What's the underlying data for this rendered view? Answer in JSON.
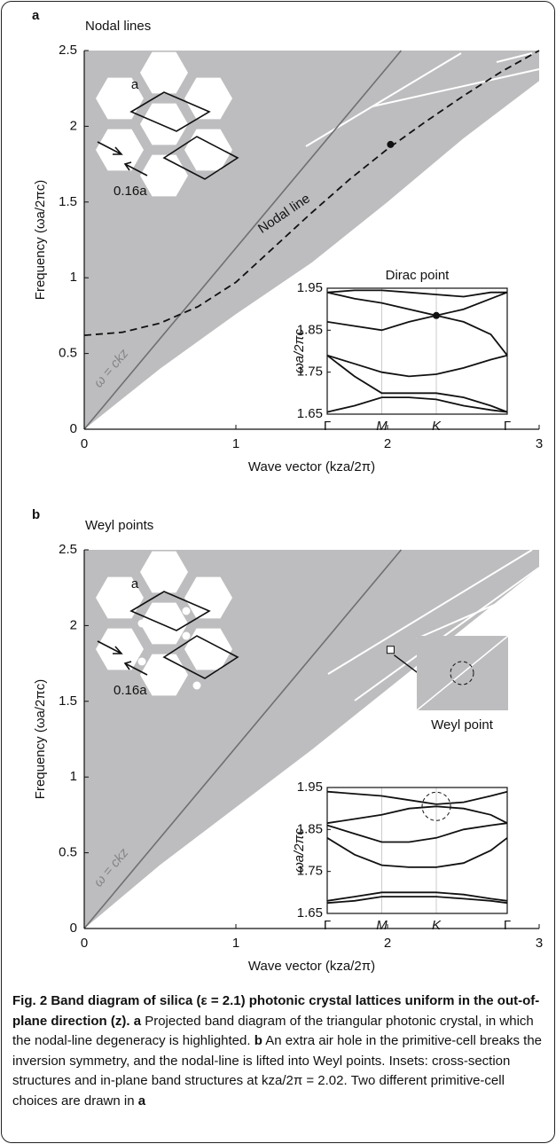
{
  "chart_data": [
    {
      "type": "area",
      "panel": "a",
      "title": "Nodal lines",
      "xlabel": "Wave vector (kza/2π)",
      "ylabel": "Frequency (ωa/2πc)",
      "xlim": [
        0,
        3
      ],
      "ylim": [
        0,
        2.5
      ],
      "xticks": [
        0,
        1,
        2,
        3
      ],
      "yticks": [
        0,
        0.5,
        1,
        1.5,
        2,
        2.5
      ],
      "projected_bands": {
        "color": "#bdbdbf",
        "x": [
          0,
          0.5,
          1,
          1.5,
          2,
          2.5,
          3
        ],
        "y": [
          0,
          0.4,
          0.76,
          1.1,
          1.5,
          1.92,
          2.3
        ]
      },
      "light_line": {
        "label": "ω = ckz",
        "color": "#6f6f72",
        "x": [
          0,
          2.09
        ],
        "y": [
          0,
          2.5
        ]
      },
      "nodal_line": {
        "label": "Nodal line",
        "x": [
          0,
          0.25,
          0.5,
          0.75,
          1,
          1.25,
          1.5,
          1.75,
          2,
          2.25,
          2.5,
          2.75,
          3
        ],
        "y": [
          0.62,
          0.64,
          0.7,
          0.81,
          0.97,
          1.2,
          1.43,
          1.65,
          1.85,
          2.03,
          2.2,
          2.36,
          2.5
        ]
      },
      "point": {
        "x": 2.02,
        "y": 1.88
      },
      "lattice_labels": [
        "a",
        "0.16a"
      ],
      "inset": {
        "title": "Dirac point",
        "ylabel": "ωa/2πc",
        "xlim": [
          0,
          3.3
        ],
        "ylim": [
          1.65,
          1.95
        ],
        "xticks": [
          {
            "value": 0,
            "label": "Γ"
          },
          {
            "value": 1,
            "label": "M"
          },
          {
            "value": 2,
            "label": "K"
          },
          {
            "value": 3.3,
            "label": "Γ"
          }
        ],
        "yticks": [
          1.65,
          1.75,
          1.85,
          1.95
        ],
        "x": [
          0,
          0.5,
          1,
          1.5,
          2,
          2.5,
          3,
          3.3
        ],
        "bands": [
          [
            1.94,
            1.945,
            1.945,
            1.94,
            1.935,
            1.93,
            1.94,
            1.94
          ],
          [
            1.94,
            1.925,
            1.915,
            1.9,
            1.885,
            1.9,
            1.925,
            1.94
          ],
          [
            1.87,
            1.86,
            1.85,
            1.87,
            1.885,
            1.87,
            1.84,
            1.79
          ],
          [
            1.79,
            1.77,
            1.75,
            1.74,
            1.745,
            1.76,
            1.78,
            1.79
          ],
          [
            1.79,
            1.74,
            1.7,
            1.7,
            1.7,
            1.69,
            1.67,
            1.655
          ],
          [
            1.655,
            1.67,
            1.69,
            1.69,
            1.685,
            1.67,
            1.66,
            1.655
          ]
        ],
        "point": {
          "x": 2,
          "y": 1.885
        }
      }
    },
    {
      "type": "area",
      "panel": "b",
      "title": "Weyl points",
      "xlabel": "Wave vector (kza/2π)",
      "ylabel": "Frequency (ωa/2πc)",
      "xlim": [
        0,
        3
      ],
      "ylim": [
        0,
        2.5
      ],
      "xticks": [
        0,
        1,
        2,
        3
      ],
      "yticks": [
        0,
        0.5,
        1,
        1.5,
        2,
        2.5
      ],
      "projected_bands": {
        "color": "#bdbdbf",
        "x": [
          0,
          0.5,
          1,
          1.5,
          2,
          2.5,
          3
        ],
        "y": [
          0,
          0.42,
          0.8,
          1.18,
          1.58,
          1.98,
          2.38
        ]
      },
      "light_line": {
        "label": "ω = ckz",
        "color": "#6f6f72",
        "x": [
          0,
          2.09
        ],
        "y": [
          0,
          2.5
        ]
      },
      "marker": {
        "x": 2.02,
        "y": 1.84
      },
      "zoom_label": "Weyl point",
      "lattice_labels": [
        "a",
        "0.16a"
      ],
      "inset": {
        "ylabel": "ωa/2πc",
        "xlim": [
          0,
          3.3
        ],
        "ylim": [
          1.65,
          1.95
        ],
        "xticks": [
          {
            "value": 0,
            "label": "Γ"
          },
          {
            "value": 1,
            "label": "M"
          },
          {
            "value": 2,
            "label": "K"
          },
          {
            "value": 3.3,
            "label": "Γ"
          }
        ],
        "yticks": [
          1.65,
          1.75,
          1.85,
          1.95
        ],
        "x": [
          0,
          0.5,
          1,
          1.5,
          2,
          2.5,
          3,
          3.3
        ],
        "bands": [
          [
            1.94,
            1.935,
            1.93,
            1.92,
            1.91,
            1.915,
            1.93,
            1.94
          ],
          [
            1.865,
            1.875,
            1.885,
            1.9,
            1.905,
            1.9,
            1.885,
            1.865
          ],
          [
            1.86,
            1.84,
            1.82,
            1.82,
            1.83,
            1.85,
            1.86,
            1.865
          ],
          [
            1.83,
            1.79,
            1.765,
            1.76,
            1.76,
            1.77,
            1.8,
            1.83
          ],
          [
            1.68,
            1.69,
            1.7,
            1.7,
            1.7,
            1.695,
            1.685,
            1.68
          ],
          [
            1.675,
            1.68,
            1.69,
            1.69,
            1.69,
            1.685,
            1.68,
            1.675
          ]
        ],
        "circle": {
          "x": 2,
          "y": 1.905
        }
      }
    }
  ],
  "caption": {
    "runs": [
      {
        "text": "Fig. 2 Band diagram of silica (ε = 2.1) photonic crystal lattices uniform in the out-of-plane direction (z).",
        "bold": true
      },
      {
        "text": " ",
        "bold": false
      },
      {
        "text": "a",
        "bold": true
      },
      {
        "text": " Projected band diagram of the triangular photonic crystal, in which the nodal-line degeneracy is highlighted. ",
        "bold": false
      },
      {
        "text": "b",
        "bold": true
      },
      {
        "text": " An extra air hole in the primitive-cell breaks the inversion symmetry, and the nodal-line is lifted into Weyl points. Insets: cross-section structures and in-plane band structures at kza/2π = 2.02. Two different primitive-cell choices are drawn in ",
        "bold": false
      },
      {
        "text": "a",
        "bold": true
      }
    ]
  }
}
